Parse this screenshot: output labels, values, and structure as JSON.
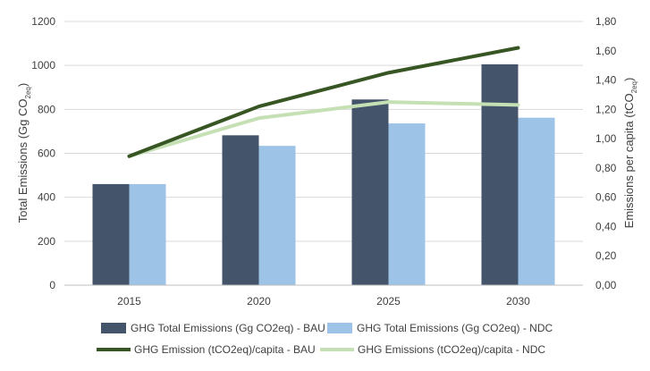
{
  "chart_data": {
    "type": "bar",
    "categories": [
      "2015",
      "2020",
      "2025",
      "2030"
    ],
    "bar_series": [
      {
        "name": "GHG Total Emissions (Gg CO2eq) - BAU",
        "values": [
          460,
          682,
          845,
          1005
        ],
        "color": "#44546a"
      },
      {
        "name": "GHG Total Emissions (Gg CO2eq) - NDC",
        "values": [
          460,
          634,
          736,
          762
        ],
        "color": "#9dc3e6"
      }
    ],
    "line_series": [
      {
        "name": "GHG Emission (tCO2eq)/capita - BAU",
        "values": [
          0.88,
          1.22,
          1.45,
          1.62
        ],
        "color": "#375623",
        "axis": "right"
      },
      {
        "name": "GHG Emissions (tCO2eq)/capita - NDC",
        "values": [
          0.88,
          1.14,
          1.25,
          1.23
        ],
        "color": "#c5e0b4",
        "axis": "right"
      }
    ],
    "ylabel": {
      "main": "Total Emissions (Gg CO",
      "sub": "2eq",
      "end": ")"
    },
    "y2label": {
      "main": "Emissions per capita (tCO",
      "sub": "2eq",
      "end": ")"
    },
    "ylim": [
      0,
      1200
    ],
    "y2lim": [
      0,
      1.8
    ],
    "yticks": [
      "0",
      "200",
      "400",
      "600",
      "800",
      "1000",
      "1200"
    ],
    "y2ticks": [
      "0,00",
      "0,20",
      "0,40",
      "0,60",
      "0,80",
      "1,00",
      "1,20",
      "1,40",
      "1,60",
      "1,80"
    ],
    "grid": true,
    "legend_position": "bottom"
  }
}
